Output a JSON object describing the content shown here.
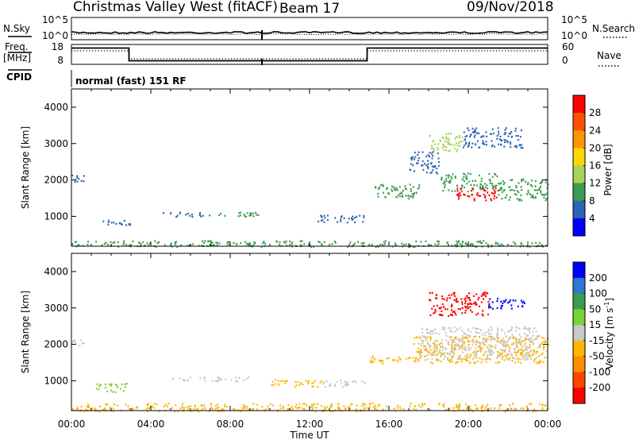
{
  "header": {
    "title": "Christmas Valley West (fitACF)",
    "beam": "Beam 17",
    "date": "09/Nov/2018"
  },
  "panels": {
    "nsky_label": "N.Sky",
    "nsearch_label": "N.Search",
    "freq_label_1": "Freq.",
    "freq_label_2": "[MHz]",
    "nave_label": "Nave",
    "cpid_label": "CPID",
    "cpid_text": "normal (fast) 151 RF",
    "noise_ticks_left": [
      "10^5",
      "10^0"
    ],
    "noise_ticks_right": [
      "10^5",
      "10^0"
    ],
    "freq_ticks_left": [
      "18",
      "8"
    ],
    "nave_ticks_right": [
      "60",
      "0"
    ]
  },
  "chart_data": {
    "type": "heatmap",
    "x_label": "Time UT",
    "x_ticks": [
      "00:00",
      "04:00",
      "08:00",
      "12:00",
      "16:00",
      "20:00",
      "00:00"
    ],
    "x_range_hours": [
      0,
      24
    ],
    "y_label": "Slant Range [km]",
    "y_ticks": [
      1000,
      2000,
      3000,
      4000
    ],
    "y_range_km": [
      180,
      4500
    ],
    "frequency_steps": [
      {
        "start_hour": 0,
        "end_hour": 2.9,
        "mhz": 16.5
      },
      {
        "start_hour": 2.9,
        "end_hour": 14.9,
        "mhz": 9.5
      },
      {
        "start_hour": 14.9,
        "end_hour": 24,
        "mhz": 16.5
      }
    ],
    "power_colorbar": {
      "label": "Power [dB]",
      "ticks": [
        "28",
        "24",
        "20",
        "16",
        "12",
        "8",
        "4"
      ],
      "colors": [
        "#ff0000",
        "#ff5000",
        "#ff9400",
        "#ffd700",
        "#a8d25a",
        "#3c9b50",
        "#2d64b4",
        "#0000ff"
      ]
    },
    "velocity_colorbar": {
      "label": "Velocity [m s",
      "label_sup": "-1",
      "label_end": "]",
      "ticks": [
        "200",
        "100",
        "50",
        "15",
        "-15",
        "-50",
        "-100",
        "-200"
      ],
      "colors": [
        "#0000ff",
        "#2d78d2",
        "#3c9b50",
        "#78d232",
        "#c8c8c8",
        "#ffb400",
        "#ff8c00",
        "#ff4600",
        "#ff0000"
      ]
    },
    "power_features": [
      {
        "t0": 0.0,
        "t1": 0.6,
        "r0": 1950,
        "r1": 2150,
        "color": "#2d64b4"
      },
      {
        "t0": 1.2,
        "t1": 3.0,
        "r0": 780,
        "r1": 920,
        "color": "#2d64b4"
      },
      {
        "t0": 4.6,
        "t1": 6.7,
        "r0": 1000,
        "r1": 1130,
        "color": "#2d64b4"
      },
      {
        "t0": 6.8,
        "t1": 9.5,
        "r0": 1000,
        "r1": 1130,
        "color": "#3c9b50"
      },
      {
        "t0": 12.4,
        "t1": 14.8,
        "r0": 850,
        "r1": 1050,
        "color": "#2d64b4"
      },
      {
        "t0": 15.2,
        "t1": 17.5,
        "r0": 1500,
        "r1": 1900,
        "color": "#3c9b50"
      },
      {
        "t0": 17.0,
        "t1": 18.5,
        "r0": 2200,
        "r1": 2800,
        "color": "#2d64b4"
      },
      {
        "t0": 18.6,
        "t1": 21.5,
        "r0": 1700,
        "r1": 2200,
        "color": "#3c9b50"
      },
      {
        "t0": 19.4,
        "t1": 21.5,
        "r0": 1450,
        "r1": 1800,
        "color": "#ff0000"
      },
      {
        "t0": 21.5,
        "t1": 24.0,
        "r0": 1450,
        "r1": 2050,
        "color": "#3c9b50"
      },
      {
        "t0": 18.0,
        "t1": 19.7,
        "r0": 2800,
        "r1": 3300,
        "color": "#a8d25a"
      },
      {
        "t0": 19.7,
        "t1": 22.7,
        "r0": 2900,
        "r1": 3450,
        "color": "#2d64b4"
      },
      {
        "t0": 0.0,
        "t1": 24.0,
        "r0": 180,
        "r1": 350,
        "color": "#3c9b50"
      }
    ],
    "velocity_features": [
      {
        "t0": 0.0,
        "t1": 0.6,
        "r0": 1950,
        "r1": 2150,
        "color": "#c8c8c8"
      },
      {
        "t0": 1.2,
        "t1": 2.8,
        "r0": 700,
        "r1": 950,
        "color": "#78d232"
      },
      {
        "t0": 5.0,
        "t1": 9.0,
        "r0": 1000,
        "r1": 1130,
        "color": "#c8c8c8"
      },
      {
        "t0": 10.0,
        "t1": 12.6,
        "r0": 850,
        "r1": 1050,
        "color": "#ffb400"
      },
      {
        "t0": 12.6,
        "t1": 14.8,
        "r0": 850,
        "r1": 1050,
        "color": "#c8c8c8"
      },
      {
        "t0": 15.0,
        "t1": 17.2,
        "r0": 1500,
        "r1": 1700,
        "color": "#ffb400"
      },
      {
        "t0": 17.2,
        "t1": 24.0,
        "r0": 1500,
        "r1": 2250,
        "color": "#ffb400"
      },
      {
        "t0": 17.5,
        "t1": 23.5,
        "r0": 1600,
        "r1": 2500,
        "color": "#c8c8c8"
      },
      {
        "t0": 18.0,
        "t1": 21.0,
        "r0": 2800,
        "r1": 3450,
        "color": "#ff0000"
      },
      {
        "t0": 21.0,
        "t1": 22.8,
        "r0": 3000,
        "r1": 3300,
        "color": "#0000ff"
      },
      {
        "t0": 0.0,
        "t1": 24.0,
        "r0": 180,
        "r1": 400,
        "color": "#ffb400"
      }
    ]
  }
}
